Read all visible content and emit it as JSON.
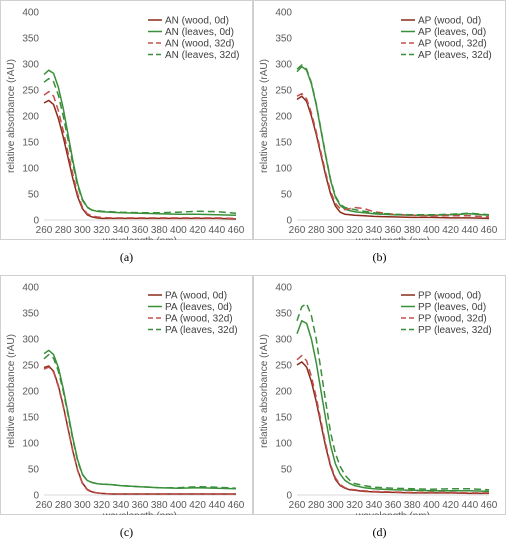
{
  "colors": {
    "wood": "#c0504d",
    "wood_line": "#8b2a1a",
    "leaves": "#3a8f3a"
  },
  "panels": [
    {
      "label": "(a)",
      "chart_data": {
        "type": "line",
        "xlabel": "wavelength (nm)",
        "ylabel": "relative absorbance (rAU)",
        "xlim": [
          260,
          460
        ],
        "ylim": [
          0,
          400
        ],
        "xticks": [
          260,
          280,
          300,
          320,
          340,
          360,
          380,
          400,
          420,
          440,
          460
        ],
        "yticks": [
          0,
          50,
          100,
          150,
          200,
          250,
          300,
          350,
          400
        ],
        "legend_position": "top-right",
        "x": [
          260,
          265,
          270,
          275,
          280,
          285,
          290,
          295,
          300,
          305,
          310,
          315,
          320,
          330,
          340,
          360,
          380,
          400,
          420,
          440,
          460
        ],
        "series": [
          {
            "name": "AN (wood, 0d)",
            "color": "wood",
            "dash": false,
            "values": [
              225,
              230,
              222,
              195,
              160,
              120,
              80,
              45,
              22,
              10,
              6,
              4,
              3,
              3,
              3,
              3,
              3,
              3,
              3,
              3,
              2
            ]
          },
          {
            "name": "AN (leaves, 0d)",
            "color": "leaves",
            "dash": false,
            "values": [
              280,
              288,
              282,
              255,
              215,
              165,
              115,
              70,
              40,
              25,
              19,
              17,
              16,
              15,
              14,
              13,
              12,
              11,
              11,
              10,
              9
            ]
          },
          {
            "name": "AN (wood, 32d)",
            "color": "wood",
            "dash": true,
            "values": [
              240,
              247,
              238,
              210,
              172,
              130,
              88,
              50,
              25,
              12,
              8,
              6,
              5,
              4,
              4,
              4,
              4,
              4,
              4,
              4,
              3
            ]
          },
          {
            "name": "AN (leaves, 32d)",
            "color": "leaves",
            "dash": true,
            "values": [
              265,
              272,
              266,
              240,
              200,
              155,
              108,
              66,
              38,
              24,
              19,
              18,
              17,
              16,
              15,
              14,
              14,
              15,
              17,
              16,
              13
            ]
          }
        ]
      }
    },
    {
      "label": "(b)",
      "chart_data": {
        "type": "line",
        "xlabel": "wavelength (nm)",
        "ylabel": "relative absorbance (rAU)",
        "xlim": [
          260,
          460
        ],
        "ylim": [
          0,
          400
        ],
        "xticks": [
          260,
          280,
          300,
          320,
          340,
          360,
          380,
          400,
          420,
          440,
          460
        ],
        "yticks": [
          0,
          50,
          100,
          150,
          200,
          250,
          300,
          350,
          400
        ],
        "legend_position": "top-right",
        "x": [
          260,
          265,
          270,
          275,
          280,
          285,
          290,
          295,
          300,
          305,
          310,
          315,
          320,
          330,
          340,
          360,
          380,
          400,
          420,
          440,
          460
        ],
        "series": [
          {
            "name": "AP (wood, 0d)",
            "color": "wood",
            "dash": false,
            "values": [
              232,
              238,
              228,
              200,
              165,
              125,
              85,
              50,
              27,
              15,
              11,
              10,
              9,
              8,
              7,
              6,
              5,
              5,
              4,
              4,
              3
            ]
          },
          {
            "name": "AP (leaves, 0d)",
            "color": "leaves",
            "dash": false,
            "values": [
              285,
              295,
              288,
              262,
              222,
              172,
              122,
              76,
              44,
              28,
              21,
              18,
              16,
              14,
              12,
              10,
              9,
              9,
              10,
              12,
              9
            ]
          },
          {
            "name": "AP (wood, 32d)",
            "color": "wood",
            "dash": true,
            "values": [
              238,
              243,
              233,
              206,
              170,
              130,
              90,
              55,
              32,
              22,
              20,
              22,
              24,
              22,
              16,
              11,
              9,
              8,
              8,
              8,
              6
            ]
          },
          {
            "name": "AP (leaves, 32d)",
            "color": "leaves",
            "dash": true,
            "values": [
              290,
              298,
              290,
              264,
              224,
              174,
              124,
              78,
              46,
              30,
              24,
              22,
              20,
              17,
              14,
              11,
              10,
              10,
              11,
              13,
              10
            ]
          }
        ]
      }
    },
    {
      "label": "(c)",
      "chart_data": {
        "type": "line",
        "xlabel": "wavelength (nm)",
        "ylabel": "relative absorbance (rAU)",
        "xlim": [
          260,
          460
        ],
        "ylim": [
          0,
          400
        ],
        "xticks": [
          260,
          280,
          300,
          320,
          340,
          360,
          380,
          400,
          420,
          440,
          460
        ],
        "yticks": [
          0,
          50,
          100,
          150,
          200,
          250,
          300,
          350,
          400
        ],
        "legend_position": "top-right",
        "x": [
          260,
          265,
          270,
          275,
          280,
          285,
          290,
          295,
          300,
          305,
          310,
          315,
          320,
          330,
          340,
          360,
          380,
          400,
          420,
          440,
          460
        ],
        "series": [
          {
            "name": "PA (wood, 0d)",
            "color": "wood",
            "dash": false,
            "values": [
              245,
              248,
              238,
              210,
              172,
              128,
              85,
              48,
              23,
              11,
              6,
              4,
              3,
              2,
              2,
              2,
              2,
              2,
              2,
              2,
              2
            ]
          },
          {
            "name": "PA (leaves, 0d)",
            "color": "leaves",
            "dash": false,
            "values": [
              272,
              278,
              270,
              245,
              205,
              158,
              110,
              68,
              40,
              28,
              24,
              22,
              21,
              20,
              18,
              16,
              14,
              13,
              14,
              13,
              12
            ]
          },
          {
            "name": "PA (wood, 32d)",
            "color": "wood",
            "dash": true,
            "values": [
              242,
              246,
              236,
              208,
              170,
              127,
              84,
              47,
              22,
              10,
              5,
              4,
              3,
              2,
              2,
              2,
              2,
              2,
              2,
              2,
              2
            ]
          },
          {
            "name": "PA (leaves, 32d)",
            "color": "leaves",
            "dash": true,
            "values": [
              262,
              270,
              263,
              238,
              200,
              154,
              107,
              66,
              39,
              28,
              24,
              22,
              21,
              20,
              18,
              16,
              14,
              14,
              16,
              15,
              13
            ]
          }
        ]
      }
    },
    {
      "label": "(d)",
      "chart_data": {
        "type": "line",
        "xlabel": "wavelength (nm)",
        "ylabel": "relative absorbance (rAU)",
        "xlim": [
          260,
          460
        ],
        "ylim": [
          0,
          400
        ],
        "xticks": [
          260,
          280,
          300,
          320,
          340,
          360,
          380,
          400,
          420,
          440,
          460
        ],
        "yticks": [
          0,
          50,
          100,
          150,
          200,
          250,
          300,
          350,
          400
        ],
        "legend_position": "top-right",
        "x": [
          260,
          265,
          270,
          275,
          280,
          285,
          290,
          295,
          300,
          305,
          310,
          315,
          320,
          330,
          340,
          360,
          380,
          400,
          420,
          440,
          460
        ],
        "series": [
          {
            "name": "PP (wood, 0d)",
            "color": "wood",
            "dash": false,
            "values": [
              250,
              256,
              246,
              218,
              180,
              136,
              92,
              55,
              30,
              18,
              13,
              10,
              9,
              7,
              6,
              5,
              4,
              4,
              4,
              3,
              3
            ]
          },
          {
            "name": "PP (leaves, 0d)",
            "color": "leaves",
            "dash": false,
            "values": [
              310,
              335,
              330,
              300,
              255,
              200,
              145,
              95,
              60,
              40,
              28,
              22,
              18,
              14,
              12,
              10,
              9,
              8,
              8,
              8,
              7
            ]
          },
          {
            "name": "PP (wood, 32d)",
            "color": "wood",
            "dash": true,
            "values": [
              260,
              268,
              258,
              228,
              188,
              142,
              97,
              58,
              33,
              20,
              14,
              11,
              10,
              8,
              7,
              6,
              5,
              5,
              5,
              4,
              4
            ]
          },
          {
            "name": "PP (leaves, 32d)",
            "color": "leaves",
            "dash": true,
            "values": [
              335,
              362,
              368,
              345,
              300,
              240,
              178,
              120,
              80,
              55,
              38,
              28,
              22,
              18,
              15,
              13,
              12,
              11,
              12,
              12,
              10
            ]
          }
        ]
      }
    }
  ]
}
